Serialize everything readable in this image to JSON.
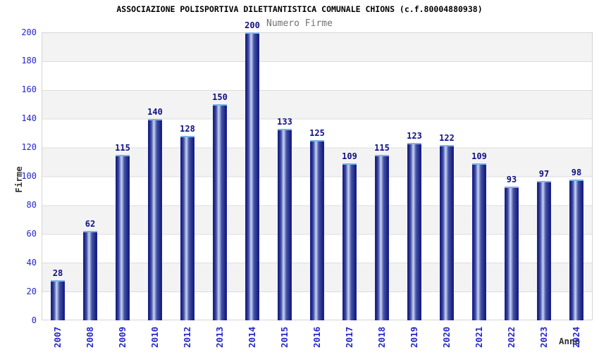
{
  "chart_data": {
    "type": "bar",
    "title": "ASSOCIAZIONE POLISPORTIVA DILETTANTISTICA COMUNALE CHIONS (c.f.80004880938)",
    "legend": "Numero Firme",
    "legend_position": "top-center",
    "xlabel": "Anno",
    "ylabel": "Firme",
    "categories": [
      "2007",
      "2008",
      "2009",
      "2010",
      "2012",
      "2013",
      "2014",
      "2015",
      "2016",
      "2017",
      "2018",
      "2019",
      "2020",
      "2021",
      "2022",
      "2023",
      "2024"
    ],
    "values": [
      28,
      62,
      115,
      140,
      128,
      150,
      200,
      133,
      125,
      109,
      115,
      123,
      122,
      109,
      93,
      97,
      98
    ],
    "ylim": [
      0,
      200
    ],
    "yticks": [
      0,
      20,
      40,
      60,
      80,
      100,
      120,
      140,
      160,
      180,
      200
    ],
    "grid": "horizontal-bands-alternating",
    "value_labels_shown": true,
    "colors": {
      "bar_edge": "#2a2aa8",
      "bar_dark": "#141b7a",
      "bar_mid": "#4353a8",
      "bar_light": "#cdd5f2",
      "bar_cap": "#79b6e9",
      "value_label": "#0f0f85",
      "tick_label": "#2525cc",
      "axis_title": "#333333",
      "legend_text": "#717171",
      "title_text": "#000000",
      "band_gray": "#f3f3f3",
      "band_white": "#ffffff",
      "grid_line": "#dcdcdc",
      "plot_border": "#d4d4d4"
    }
  }
}
